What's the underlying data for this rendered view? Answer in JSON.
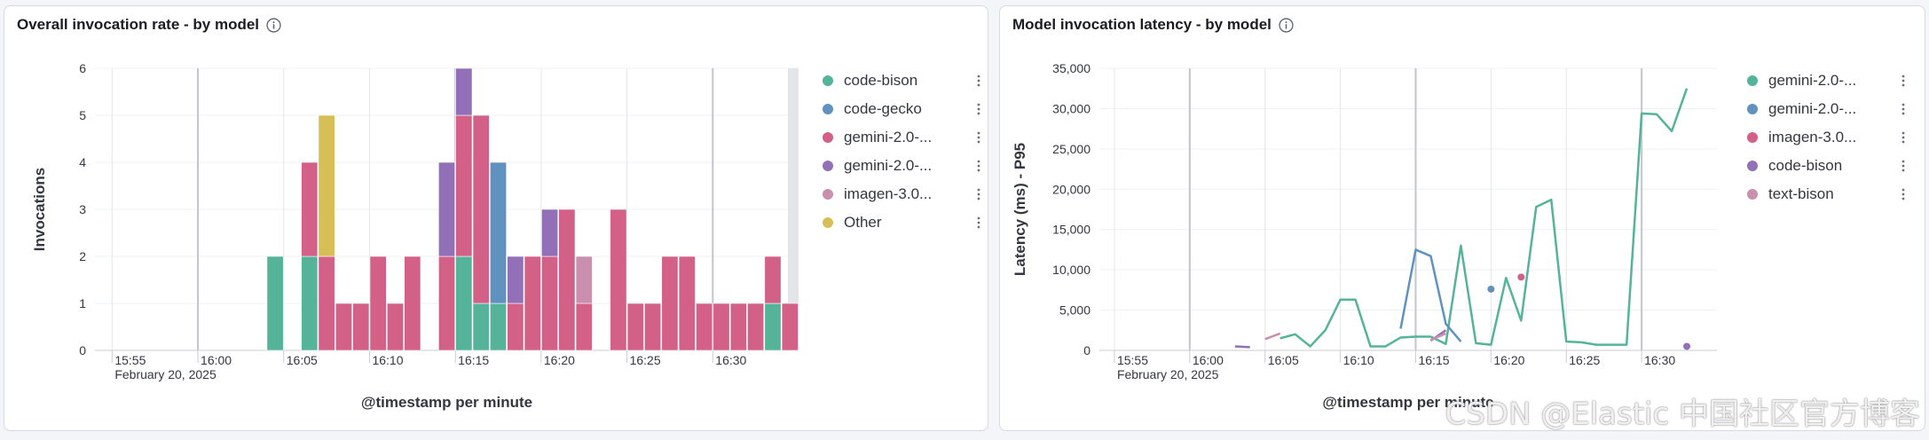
{
  "panels": [
    {
      "title": "Overall invocation rate - by model",
      "legend": [
        {
          "label": "code-bison",
          "color": "#54b399"
        },
        {
          "label": "code-gecko",
          "color": "#6092c0"
        },
        {
          "label": "gemini-2.0-...",
          "color": "#d36086"
        },
        {
          "label": "gemini-2.0-...",
          "color": "#9170b8"
        },
        {
          "label": "imagen-3.0...",
          "color": "#ca8eae"
        },
        {
          "label": "Other",
          "color": "#d6bf57"
        }
      ]
    },
    {
      "title": "Model invocation latency - by model",
      "legend": [
        {
          "label": "gemini-2.0-...",
          "color": "#54b399"
        },
        {
          "label": "gemini-2.0-...",
          "color": "#6092c0"
        },
        {
          "label": "imagen-3.0...",
          "color": "#d36086"
        },
        {
          "label": "code-bison",
          "color": "#9170b8"
        },
        {
          "label": "text-bison",
          "color": "#ca8eae"
        }
      ]
    }
  ],
  "chart_data": [
    {
      "type": "bar",
      "stacked": true,
      "xlabel": "@timestamp per minute",
      "ylabel": "Invocations",
      "ylim": [
        0,
        6
      ],
      "yticks": [
        0,
        1,
        2,
        3,
        4,
        5,
        6
      ],
      "xlim": [
        "15:54",
        "16:35"
      ],
      "xticks": [
        {
          "at": "15:55",
          "label": "15:55",
          "sublabel": "February 20, 2025"
        },
        {
          "at": "16:00",
          "label": "16:00"
        },
        {
          "at": "16:05",
          "label": "16:05"
        },
        {
          "at": "16:10",
          "label": "16:10"
        },
        {
          "at": "16:15",
          "label": "16:15"
        },
        {
          "at": "16:20",
          "label": "16:20"
        },
        {
          "at": "16:25",
          "label": "16:25"
        },
        {
          "at": "16:30",
          "label": "16:30"
        }
      ],
      "major_grid": [
        "16:00",
        "16:15",
        "16:30"
      ],
      "series_order": [
        "code-bison",
        "code-gecko",
        "gemini-2.0-a",
        "gemini-2.0-b",
        "imagen-3.0",
        "Other"
      ],
      "series_colors": {
        "code-bison": "#54b399",
        "code-gecko": "#6092c0",
        "gemini-2.0-a": "#d36086",
        "gemini-2.0-b": "#9170b8",
        "imagen-3.0": "#ca8eae",
        "Other": "#d6bf57"
      },
      "bars": [
        {
          "t": "16:04",
          "values": {
            "code-bison": 2
          }
        },
        {
          "t": "16:06",
          "values": {
            "code-bison": 2,
            "gemini-2.0-a": 2
          }
        },
        {
          "t": "16:07",
          "values": {
            "gemini-2.0-a": 2,
            "Other": 3
          }
        },
        {
          "t": "16:08",
          "values": {
            "gemini-2.0-a": 1
          }
        },
        {
          "t": "16:09",
          "values": {
            "gemini-2.0-a": 1
          }
        },
        {
          "t": "16:10",
          "values": {
            "gemini-2.0-a": 2
          }
        },
        {
          "t": "16:11",
          "values": {
            "gemini-2.0-a": 1
          }
        },
        {
          "t": "16:12",
          "values": {
            "gemini-2.0-a": 2
          }
        },
        {
          "t": "16:14",
          "values": {
            "gemini-2.0-a": 2,
            "gemini-2.0-b": 2
          }
        },
        {
          "t": "16:15",
          "values": {
            "code-bison": 2,
            "gemini-2.0-a": 3,
            "gemini-2.0-b": 1
          }
        },
        {
          "t": "16:16",
          "values": {
            "code-bison": 1,
            "gemini-2.0-a": 4
          }
        },
        {
          "t": "16:17",
          "values": {
            "code-bison": 1,
            "code-gecko": 3
          }
        },
        {
          "t": "16:18",
          "values": {
            "gemini-2.0-a": 1,
            "gemini-2.0-b": 1
          }
        },
        {
          "t": "16:19",
          "values": {
            "gemini-2.0-a": 2
          }
        },
        {
          "t": "16:20",
          "values": {
            "gemini-2.0-a": 2,
            "gemini-2.0-b": 1
          }
        },
        {
          "t": "16:21",
          "values": {
            "gemini-2.0-a": 3
          }
        },
        {
          "t": "16:22",
          "values": {
            "gemini-2.0-a": 1,
            "imagen-3.0": 1
          }
        },
        {
          "t": "16:24",
          "values": {
            "gemini-2.0-a": 3
          }
        },
        {
          "t": "16:25",
          "values": {
            "gemini-2.0-a": 1
          }
        },
        {
          "t": "16:26",
          "values": {
            "gemini-2.0-a": 1
          }
        },
        {
          "t": "16:27",
          "values": {
            "gemini-2.0-a": 2
          }
        },
        {
          "t": "16:28",
          "values": {
            "gemini-2.0-a": 2
          }
        },
        {
          "t": "16:29",
          "values": {
            "gemini-2.0-a": 1
          }
        },
        {
          "t": "16:30",
          "values": {
            "gemini-2.0-a": 1
          }
        },
        {
          "t": "16:31",
          "values": {
            "gemini-2.0-a": 1
          }
        },
        {
          "t": "16:32",
          "values": {
            "gemini-2.0-a": 1
          }
        },
        {
          "t": "16:33",
          "values": {
            "code-bison": 1,
            "gemini-2.0-a": 1
          }
        },
        {
          "t": "16:34",
          "values": {
            "gemini-2.0-a": 1
          }
        }
      ],
      "incomplete_bucket": "16:34"
    },
    {
      "type": "line",
      "xlabel": "@timestamp per minute",
      "ylabel": "Latency (ms) - P95",
      "ylim": [
        0,
        35000
      ],
      "yticks": [
        {
          "v": 0,
          "label": "0"
        },
        {
          "v": 5000,
          "label": "5,000"
        },
        {
          "v": 10000,
          "label": "10,000"
        },
        {
          "v": 15000,
          "label": "15,000"
        },
        {
          "v": 20000,
          "label": "20,000"
        },
        {
          "v": 25000,
          "label": "25,000"
        },
        {
          "v": 30000,
          "label": "30,000"
        },
        {
          "v": 35000,
          "label": "35,000"
        }
      ],
      "xlim": [
        "15:54",
        "16:35"
      ],
      "xticks": [
        {
          "at": "15:55",
          "label": "15:55",
          "sublabel": "February 20, 2025"
        },
        {
          "at": "16:00",
          "label": "16:00"
        },
        {
          "at": "16:05",
          "label": "16:05"
        },
        {
          "at": "16:10",
          "label": "16:10"
        },
        {
          "at": "16:15",
          "label": "16:15"
        },
        {
          "at": "16:20",
          "label": "16:20"
        },
        {
          "at": "16:25",
          "label": "16:25"
        },
        {
          "at": "16:30",
          "label": "16:30"
        }
      ],
      "major_grid": [
        "16:00",
        "16:15",
        "16:30"
      ],
      "series": [
        {
          "name": "gemini-2.0-...",
          "color": "#54b399",
          "points": [
            [
              "16:06",
              1500
            ],
            [
              "16:07",
              2000
            ],
            [
              "16:08",
              500
            ],
            [
              "16:09",
              2500
            ],
            [
              "16:10",
              6300
            ],
            [
              "16:11",
              6300
            ],
            [
              "16:12",
              500
            ],
            [
              "16:13",
              500
            ],
            [
              "16:14",
              1600
            ],
            [
              "16:15",
              1700
            ],
            [
              "16:16",
              1700
            ],
            [
              "16:17",
              800
            ],
            [
              "16:18",
              13000
            ],
            [
              "16:19",
              900
            ],
            [
              "16:20",
              700
            ],
            [
              "16:21",
              9000
            ],
            [
              "16:22",
              3700
            ],
            [
              "16:23",
              17800
            ],
            [
              "16:24",
              18700
            ],
            [
              "16:25",
              1100
            ],
            [
              "16:26",
              1000
            ],
            [
              "16:27",
              700
            ],
            [
              "16:28",
              700
            ],
            [
              "16:29",
              700
            ],
            [
              "16:30",
              29400
            ],
            [
              "16:31",
              29300
            ],
            [
              "16:32",
              27200
            ],
            [
              "16:33",
              32500
            ]
          ]
        },
        {
          "name": "gemini-2.0-...",
          "color": "#6092c0",
          "points": [
            [
              "16:14",
              2700
            ],
            [
              "16:15",
              12500
            ],
            [
              "16:16",
              11700
            ],
            [
              "16:17",
              3300
            ],
            [
              "16:18",
              1100
            ],
            [
              "16:20",
              7600,
              "point"
            ]
          ]
        },
        {
          "name": "imagen-3.0...",
          "color": "#d36086",
          "points": [
            [
              "16:22",
              9100,
              "point"
            ]
          ]
        },
        {
          "name": "code-bison",
          "color": "#9170b8",
          "points": [
            [
              "16:03",
              500
            ],
            [
              "16:04",
              400
            ],
            [
              "16:06",
              300
            ],
            [
              "16:16",
              1200
            ],
            [
              "16:17",
              2500
            ],
            [
              "16:33",
              500,
              "point"
            ]
          ]
        },
        {
          "name": "text-bison",
          "color": "#ca8eae",
          "points": [
            [
              "16:05",
              1400
            ],
            [
              "16:06",
              2100
            ],
            [
              "16:16",
              1300
            ],
            [
              "16:17",
              2100
            ]
          ]
        }
      ]
    }
  ],
  "watermark": "CSDN @Elastic 中国社区官方博客"
}
